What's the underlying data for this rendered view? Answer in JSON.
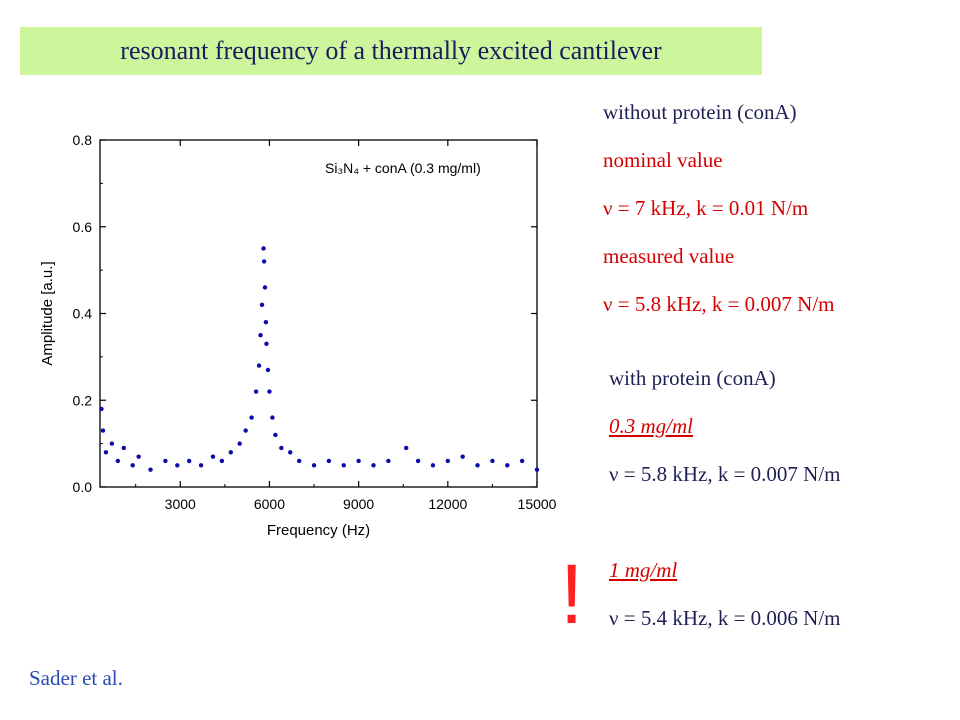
{
  "title": "resonant frequency of a thermally excited cantilever",
  "notes": {
    "without_header": "without protein (conA)",
    "nominal_label": "nominal value",
    "nominal_nu": "ν = 7 kHz,  k = 0.01 N/m",
    "measured_label": "measured value",
    "measured_nu": "ν = 5.8 kHz, k = 0.007 N/m",
    "with_header": "with protein (conA)",
    "conc1": "0.3 mg/ml",
    "conc1_nu": "ν = 5.8 kHz, k = 0.007 N/m",
    "conc2": "1 mg/ml",
    "conc2_nu": "ν = 5.4 kHz, k = 0.006 N/m",
    "exclamation": "!"
  },
  "citation": "Sader et al.",
  "colors": {
    "points": "#0a0aa8",
    "title_bg": "#ccf59c",
    "red": "#d40000",
    "dark": "#1f1f55"
  },
  "chart_data": {
    "type": "scatter",
    "xlabel": "Frequency (Hz)",
    "ylabel": "Amplitude [a.u.]",
    "xlim": [
      300,
      15000
    ],
    "ylim": [
      0,
      0.8
    ],
    "xticks": [
      3000,
      6000,
      9000,
      12000,
      15000
    ],
    "yticks": [
      0.0,
      0.2,
      0.4,
      0.6,
      0.8
    ],
    "ytick_labels": [
      "0.0",
      "0.2",
      "0.4",
      "0.6",
      "0.8"
    ],
    "legend_text": "Si₃N₄ + conA (0.3 mg/ml)",
    "grid": false,
    "series": [
      {
        "name": "Si₃N₄ + conA (0.3 mg/ml)",
        "note": "thermal noise spectrum; baseline ~0.02–0.07, resonance peak near 5800 Hz reaching ~0.55",
        "points": [
          [
            350,
            0.18
          ],
          [
            400,
            0.13
          ],
          [
            500,
            0.08
          ],
          [
            700,
            0.1
          ],
          [
            900,
            0.06
          ],
          [
            1100,
            0.09
          ],
          [
            1400,
            0.05
          ],
          [
            1600,
            0.07
          ],
          [
            2000,
            0.04
          ],
          [
            2500,
            0.06
          ],
          [
            2900,
            0.05
          ],
          [
            3300,
            0.06
          ],
          [
            3700,
            0.05
          ],
          [
            4100,
            0.07
          ],
          [
            4400,
            0.06
          ],
          [
            4700,
            0.08
          ],
          [
            5000,
            0.1
          ],
          [
            5200,
            0.13
          ],
          [
            5400,
            0.16
          ],
          [
            5550,
            0.22
          ],
          [
            5650,
            0.28
          ],
          [
            5700,
            0.35
          ],
          [
            5750,
            0.42
          ],
          [
            5800,
            0.55
          ],
          [
            5820,
            0.52
          ],
          [
            5850,
            0.46
          ],
          [
            5880,
            0.38
          ],
          [
            5900,
            0.33
          ],
          [
            5950,
            0.27
          ],
          [
            6000,
            0.22
          ],
          [
            6100,
            0.16
          ],
          [
            6200,
            0.12
          ],
          [
            6400,
            0.09
          ],
          [
            6700,
            0.08
          ],
          [
            7000,
            0.06
          ],
          [
            7500,
            0.05
          ],
          [
            8000,
            0.06
          ],
          [
            8500,
            0.05
          ],
          [
            9000,
            0.06
          ],
          [
            9500,
            0.05
          ],
          [
            10000,
            0.06
          ],
          [
            10600,
            0.09
          ],
          [
            11000,
            0.06
          ],
          [
            11500,
            0.05
          ],
          [
            12000,
            0.06
          ],
          [
            12500,
            0.07
          ],
          [
            13000,
            0.05
          ],
          [
            13500,
            0.06
          ],
          [
            14000,
            0.05
          ],
          [
            14500,
            0.06
          ],
          [
            15000,
            0.04
          ]
        ]
      }
    ]
  }
}
